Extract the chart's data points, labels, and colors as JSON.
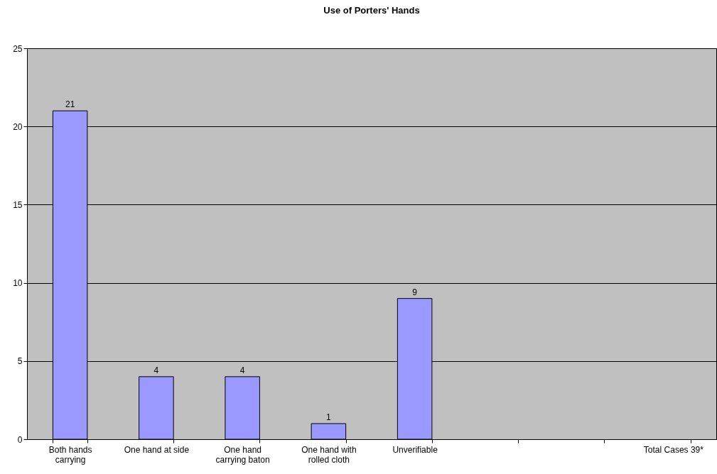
{
  "chart_data": {
    "type": "bar",
    "title": "Use of Porters' Hands",
    "categories": [
      "Both hands carrying",
      "One hand at side",
      "One hand carrying baton",
      "One hand with rolled cloth",
      "Unverifiable",
      null,
      null,
      "Total Cases 39*"
    ],
    "values": [
      21,
      4,
      4,
      1,
      9,
      null,
      null,
      null
    ],
    "color": "#9999ff",
    "ylim": [
      0,
      25
    ],
    "yticks": [
      0,
      5,
      10,
      15,
      20,
      25
    ],
    "grid": "y",
    "data_labels": true
  }
}
